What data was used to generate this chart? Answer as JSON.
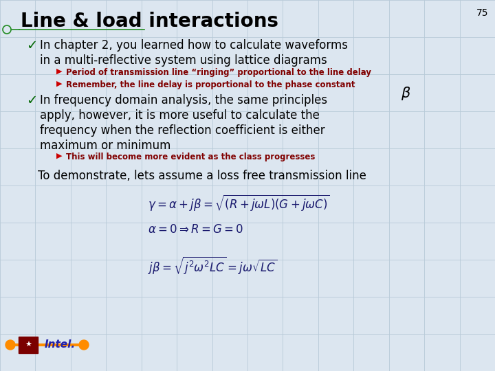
{
  "title": "Line & load interactions",
  "page_number": "75",
  "background_color": "#dce6f0",
  "grid_color": "#b8cad8",
  "title_color": "#000000",
  "title_fontsize": 20,
  "main_text_color": "#000000",
  "sub_text_color": "#800000",
  "check_color": "#006600",
  "arrow_color": "#cc0000",
  "bottom_text_color": "#000000",
  "eq_color": "#1a1a6e",
  "bullet1_line1": "In chapter 2, you learned how to calculate waveforms",
  "bullet1_line2": "in a multi-reflective system using lattice diagrams",
  "sub1_line1": "Period of transmission line “ringing” proportional to the line delay",
  "sub1_line2": "Remember, the line delay is proportional to the phase constant",
  "bullet2_line1": "In frequency domain analysis, the same principles",
  "bullet2_line2": "apply, however, it is more useful to calculate the",
  "bullet2_line3": "frequency when the reflection coefficient is either",
  "bullet2_line4": "maximum or minimum",
  "sub2_line1": "This will become more evident as the class progresses",
  "bottom_text": "To demonstrate, lets assume a loss free transmission line",
  "eq1": "$\\gamma = \\alpha + j\\beta = \\sqrt{(R + j\\omega L)(G + j\\omega C)}$",
  "eq2": "$\\alpha = 0 \\Rightarrow R = G = 0$",
  "eq3": "$j\\beta = \\sqrt{j^2\\omega^2 LC} = j\\omega\\sqrt{LC}$"
}
